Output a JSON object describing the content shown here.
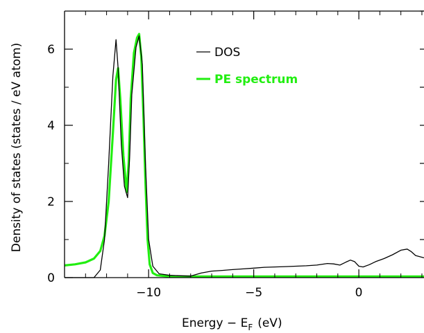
{
  "chart_data": {
    "type": "line",
    "title": "",
    "xlabel": "Energy − E",
    "xlabel_sub": "F",
    "xlabel_unit": "(eV)",
    "ylabel": "Density of states (states / eV atom)",
    "xlim": [
      -14.0,
      3.1
    ],
    "ylim": [
      0,
      7.0
    ],
    "grid": false,
    "legend_position": "top-right",
    "x_ticks": [
      -10,
      -5,
      0
    ],
    "x_tick_labels": [
      "−10",
      "−5",
      "0"
    ],
    "y_ticks": [
      0,
      2,
      4,
      6
    ],
    "y_tick_labels": [
      "0",
      "2",
      "4",
      "6"
    ],
    "series": [
      {
        "name": "DOS",
        "color": "#000000",
        "x": [
          -14.0,
          -12.6,
          -12.3,
          -12.1,
          -11.9,
          -11.7,
          -11.55,
          -11.45,
          -11.3,
          -11.15,
          -11.0,
          -10.9,
          -10.8,
          -10.6,
          -10.45,
          -10.3,
          -10.15,
          -10.0,
          -9.8,
          -9.5,
          -9.0,
          -8.5,
          -8.0,
          -7.5,
          -7.0,
          -6.5,
          -6.0,
          -5.5,
          -5.0,
          -4.5,
          -4.0,
          -3.5,
          -3.0,
          -2.5,
          -2.0,
          -1.5,
          -1.2,
          -0.9,
          -0.6,
          -0.4,
          -0.2,
          0.0,
          0.2,
          0.5,
          0.8,
          1.2,
          1.6,
          2.0,
          2.3,
          2.5,
          2.7,
          3.1
        ],
        "y": [
          0.0,
          0.0,
          0.2,
          1.0,
          3.0,
          5.3,
          6.25,
          5.5,
          3.5,
          2.4,
          2.1,
          3.2,
          4.8,
          6.05,
          6.35,
          5.6,
          3.0,
          1.0,
          0.3,
          0.1,
          0.06,
          0.05,
          0.04,
          0.12,
          0.17,
          0.19,
          0.21,
          0.23,
          0.25,
          0.27,
          0.28,
          0.29,
          0.3,
          0.31,
          0.33,
          0.37,
          0.36,
          0.33,
          0.41,
          0.46,
          0.42,
          0.3,
          0.28,
          0.34,
          0.42,
          0.5,
          0.6,
          0.72,
          0.75,
          0.68,
          0.58,
          0.52
        ]
      },
      {
        "name": "PE spectrum",
        "color": "#22ee11",
        "x": [
          -14.0,
          -13.5,
          -13.0,
          -12.6,
          -12.3,
          -12.1,
          -11.9,
          -11.7,
          -11.55,
          -11.45,
          -11.35,
          -11.2,
          -11.05,
          -10.95,
          -10.85,
          -10.7,
          -10.55,
          -10.45,
          -10.35,
          -10.25,
          -10.15,
          -10.05,
          -9.95,
          -9.8,
          -9.6,
          -9.2,
          -8.8,
          -8.0,
          -7.0,
          -6.0,
          -5.0,
          -4.0,
          -3.0,
          -2.0,
          -1.0,
          0.0,
          1.0,
          2.0,
          3.1
        ],
        "y": [
          0.32,
          0.35,
          0.4,
          0.5,
          0.7,
          1.1,
          2.0,
          3.8,
          5.2,
          5.5,
          4.7,
          3.2,
          2.25,
          3.0,
          4.7,
          5.9,
          6.3,
          6.4,
          5.8,
          4.3,
          2.5,
          1.0,
          0.35,
          0.12,
          0.06,
          0.04,
          0.03,
          0.03,
          0.03,
          0.03,
          0.03,
          0.03,
          0.03,
          0.03,
          0.03,
          0.03,
          0.03,
          0.03,
          0.03
        ]
      }
    ]
  }
}
